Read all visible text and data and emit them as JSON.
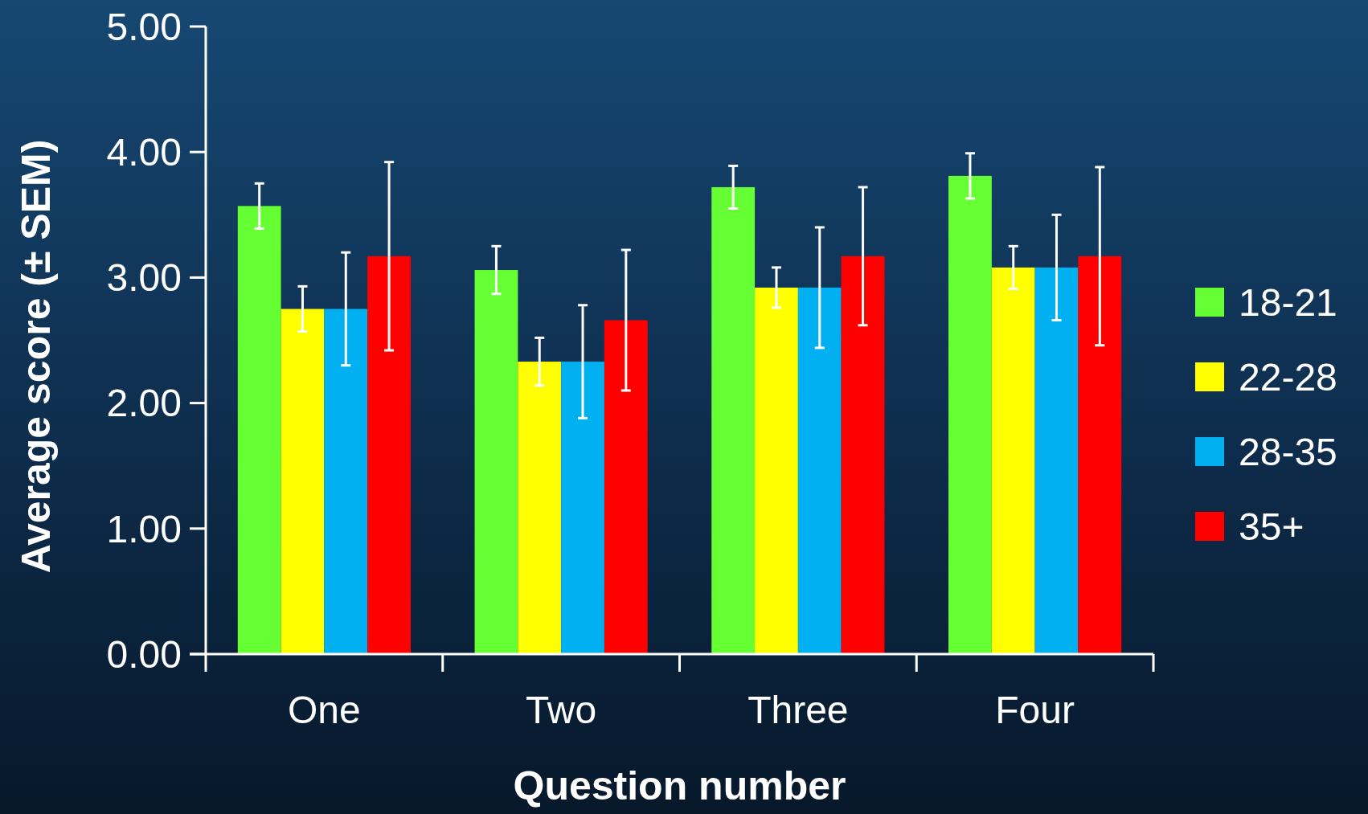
{
  "chart_data": {
    "type": "bar",
    "xlabel": "Question number",
    "ylabel": "Average score (± SEM)",
    "categories": [
      "One",
      "Two",
      "Three",
      "Four"
    ],
    "series": [
      {
        "name": "18-21",
        "color": "#66ff33",
        "values": [
          3.57,
          3.06,
          3.72,
          3.81
        ],
        "errors": [
          0.18,
          0.19,
          0.17,
          0.18
        ]
      },
      {
        "name": "22-28",
        "color": "#ffff00",
        "values": [
          2.75,
          2.33,
          2.92,
          3.08
        ],
        "errors": [
          0.18,
          0.19,
          0.16,
          0.17
        ]
      },
      {
        "name": "28-35",
        "color": "#00b0f0",
        "values": [
          2.75,
          2.33,
          2.92,
          3.08
        ],
        "errors": [
          0.45,
          0.45,
          0.48,
          0.42
        ]
      },
      {
        "name": "35+",
        "color": "#ff0000",
        "values": [
          3.17,
          2.66,
          3.17,
          3.17
        ],
        "errors": [
          0.75,
          0.56,
          0.55,
          0.71
        ]
      }
    ],
    "ylim": [
      0,
      5
    ],
    "yticks": [
      {
        "value": 0,
        "label": "0.00"
      },
      {
        "value": 1,
        "label": "1.00"
      },
      {
        "value": 2,
        "label": "2.00"
      },
      {
        "value": 3,
        "label": "3.00"
      },
      {
        "value": 4,
        "label": "4.00"
      },
      {
        "value": 5,
        "label": "5.00"
      }
    ],
    "grid": false,
    "legend": "right"
  }
}
